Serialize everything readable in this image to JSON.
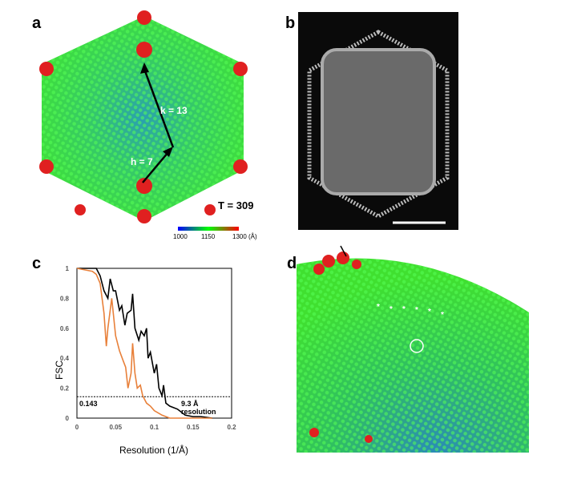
{
  "panels": {
    "a": {
      "label": "a",
      "k_label": "k = 13",
      "h_label": "h = 7",
      "t_label": "T = 309",
      "colorbar": {
        "ticks": [
          "1000",
          "1150",
          "1300 (Å)"
        ],
        "colors": [
          "#0000ff",
          "#00ff00",
          "#ff0000"
        ]
      }
    },
    "b": {
      "label": "b"
    },
    "c": {
      "label": "c",
      "threshold_label": "0.143",
      "resolution_label_1": "9.3 Å",
      "resolution_label_2": "resolution"
    },
    "d": {
      "label": "d",
      "marker": "*"
    }
  },
  "chart_data": {
    "type": "line",
    "xlabel": "Resolution (1/Å)",
    "ylabel": "FSC",
    "xlim": [
      0,
      0.2
    ],
    "ylim": [
      0,
      1
    ],
    "xticks": [
      "0",
      "0.05",
      "0.1",
      "0.15",
      "0.2"
    ],
    "yticks": [
      "0",
      "0.2",
      "0.4",
      "0.6",
      "0.8",
      "1"
    ],
    "threshold": 0.143,
    "series": [
      {
        "color": "#000000",
        "x": [
          0,
          0.01,
          0.025,
          0.03,
          0.035,
          0.04,
          0.043,
          0.047,
          0.05,
          0.055,
          0.058,
          0.062,
          0.065,
          0.07,
          0.072,
          0.075,
          0.08,
          0.083,
          0.087,
          0.09,
          0.092,
          0.095,
          0.1,
          0.103,
          0.106,
          0.11,
          0.112,
          0.115,
          0.12,
          0.13,
          0.14,
          0.15,
          0.16,
          0.175
        ],
        "y": [
          1,
          1,
          1,
          0.95,
          0.85,
          0.8,
          0.93,
          0.85,
          0.85,
          0.72,
          0.75,
          0.62,
          0.7,
          0.72,
          0.83,
          0.6,
          0.52,
          0.58,
          0.55,
          0.6,
          0.4,
          0.44,
          0.3,
          0.36,
          0.2,
          0.15,
          0.22,
          0.1,
          0.08,
          0.06,
          0.02,
          0.01,
          0.01,
          0
        ]
      },
      {
        "color": "#e8803a",
        "x": [
          0,
          0.02,
          0.025,
          0.03,
          0.035,
          0.038,
          0.04,
          0.045,
          0.048,
          0.05,
          0.055,
          0.06,
          0.063,
          0.066,
          0.07,
          0.072,
          0.075,
          0.078,
          0.082,
          0.085,
          0.09,
          0.095,
          0.1,
          0.11,
          0.12,
          0.15,
          0.175
        ],
        "y": [
          1,
          0.98,
          0.96,
          0.9,
          0.7,
          0.48,
          0.6,
          0.8,
          0.65,
          0.55,
          0.45,
          0.38,
          0.34,
          0.2,
          0.3,
          0.5,
          0.3,
          0.2,
          0.22,
          0.15,
          0.1,
          0.08,
          0.05,
          0.02,
          0,
          0,
          0
        ]
      }
    ]
  }
}
